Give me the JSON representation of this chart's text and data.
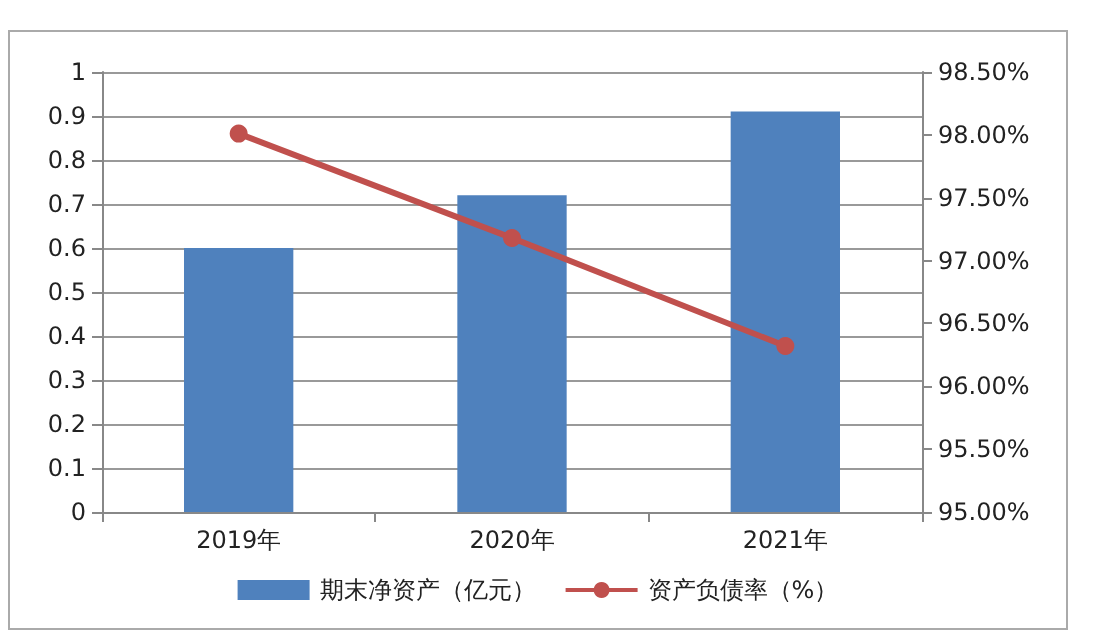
{
  "chart_data": {
    "type": "bar",
    "categories": [
      "2019年",
      "2020年",
      "2021年"
    ],
    "series": [
      {
        "name": "期末净资产（亿元）",
        "color": "#4f81bd",
        "values": [
          0.6,
          0.72,
          0.91
        ]
      },
      {
        "name": "资产负债率（%）",
        "type": "line",
        "axis": "y2",
        "color": "#c0504d",
        "values": [
          98.01,
          97.18,
          96.32
        ],
        "marker": "circle"
      }
    ],
    "ylim": [
      0,
      1
    ],
    "yticks": [
      0,
      0.1,
      0.2,
      0.3,
      0.4,
      0.5,
      0.6,
      0.7,
      0.8,
      0.9,
      1
    ],
    "y2lim": [
      95,
      98.5
    ],
    "y2ticks": [
      {
        "value": 95,
        "label": "95.00%"
      },
      {
        "value": 95.5,
        "label": "95.50%"
      },
      {
        "value": 96,
        "label": "96.00%"
      },
      {
        "value": 96.5,
        "label": "96.50%"
      },
      {
        "value": 97,
        "label": "97.00%"
      },
      {
        "value": 97.5,
        "label": "97.50%"
      },
      {
        "value": 98,
        "label": "98.00%"
      },
      {
        "value": 98.5,
        "label": "98.50%"
      }
    ],
    "grid": "y",
    "legend": "bottom"
  }
}
